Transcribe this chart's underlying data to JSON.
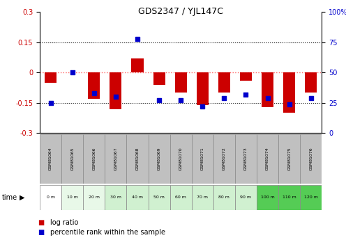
{
  "title": "GDS2347 / YJL147C",
  "samples": [
    "GSM81064",
    "GSM81065",
    "GSM81066",
    "GSM81067",
    "GSM81068",
    "GSM81069",
    "GSM81070",
    "GSM81071",
    "GSM81072",
    "GSM81073",
    "GSM81074",
    "GSM81075",
    "GSM81076"
  ],
  "time_labels": [
    "0 m",
    "10 m",
    "20 m",
    "30 m",
    "40 m",
    "50 m",
    "60 m",
    "70 m",
    "80 m",
    "90 m",
    "100 m",
    "110 m",
    "120 m"
  ],
  "log_ratio": [
    -0.05,
    0.0,
    -0.13,
    -0.18,
    0.07,
    -0.06,
    -0.1,
    -0.16,
    -0.1,
    -0.04,
    -0.17,
    -0.2,
    -0.1
  ],
  "percentile": [
    25,
    50,
    33,
    30,
    78,
    27,
    27,
    22,
    29,
    32,
    29,
    24,
    29
  ],
  "bar_color": "#CC0000",
  "dot_color": "#0000CC",
  "ylim": [
    -0.3,
    0.3
  ],
  "yticks_left": [
    -0.3,
    -0.15,
    0,
    0.15,
    0.3
  ],
  "yticks_right": [
    0,
    25,
    50,
    75,
    100
  ],
  "zero_line_color": "#FF6666",
  "dotted_line_color": "#000000",
  "sample_row_color": "#C0C0C0",
  "time_row_colors": [
    "#FFFFFF",
    "#E8F8E8",
    "#E8F8E8",
    "#D0F0D0",
    "#D0F0D0",
    "#D0F0D0",
    "#D0F0D0",
    "#D0F0D0",
    "#D0F0D0",
    "#D0F0D0",
    "#55CC55",
    "#55CC55",
    "#55CC55"
  ],
  "legend_labels": [
    "log ratio",
    "percentile rank within the sample"
  ]
}
